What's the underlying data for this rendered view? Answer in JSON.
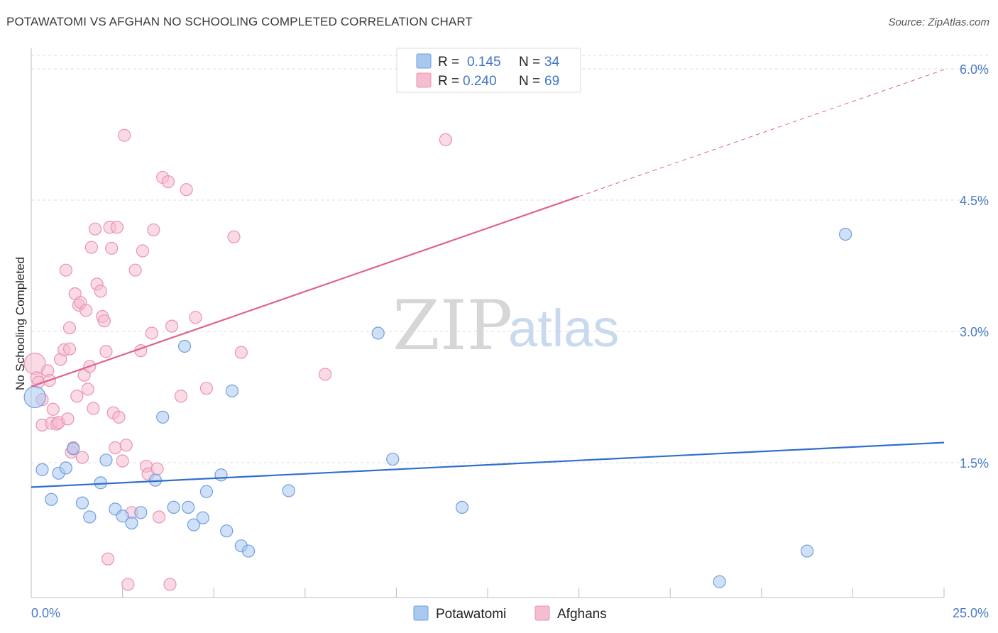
{
  "header": {
    "title": "POTAWATOMI VS AFGHAN NO SCHOOLING COMPLETED CORRELATION CHART",
    "source": "Source: ZipAtlas.com"
  },
  "watermark": {
    "zip": "ZIP",
    "atlas": "atlas"
  },
  "colors": {
    "potawatomi_fill": "#a9c8f0",
    "potawatomi_stroke": "#6f9fe0",
    "potawatomi_line": "#2f6fce",
    "afghan_fill": "#f6bcd0",
    "afghan_stroke": "#ea93b3",
    "afghan_line": "#e0628f",
    "tick_label": "#4a7bc6",
    "grid": "#dddddd"
  },
  "legend": {
    "rows": [
      {
        "r_label": "R =",
        "r_value": "0.145",
        "n_label": "N =",
        "n_value": "34"
      },
      {
        "r_label": "R =",
        "r_value": "0.240",
        "n_label": "N =",
        "n_value": "69"
      }
    ]
  },
  "chart_data": {
    "type": "scatter",
    "title": "POTAWATOMI VS AFGHAN NO SCHOOLING COMPLETED CORRELATION CHART",
    "xlabel": "",
    "ylabel": "No Schooling Completed",
    "xlim": [
      0,
      25
    ],
    "ylim": [
      0,
      6.2
    ],
    "x_tick_labels": [
      "0.0%",
      "25.0%"
    ],
    "y_ticks": [
      1.5,
      3.0,
      4.5,
      6.0
    ],
    "y_tick_labels": [
      "1.5%",
      "3.0%",
      "4.5%",
      "6.0%"
    ],
    "grid": true,
    "legend_position": "top-center",
    "series": [
      {
        "name": "Potawatomi",
        "r": 0.145,
        "n": 34,
        "trend": {
          "x0": 0,
          "y0": 1.22,
          "x1": 25,
          "y1": 1.73,
          "dashed_from_x": null
        },
        "points": [
          [
            0.1,
            2.25
          ],
          [
            0.3,
            1.42
          ],
          [
            0.55,
            1.08
          ],
          [
            0.75,
            1.38
          ],
          [
            0.95,
            1.44
          ],
          [
            1.15,
            1.66
          ],
          [
            1.4,
            1.04
          ],
          [
            1.6,
            0.88
          ],
          [
            1.9,
            1.27
          ],
          [
            2.05,
            1.53
          ],
          [
            2.3,
            0.97
          ],
          [
            2.5,
            0.89
          ],
          [
            2.75,
            0.81
          ],
          [
            3.0,
            0.93
          ],
          [
            3.4,
            1.3
          ],
          [
            3.6,
            2.02
          ],
          [
            3.9,
            0.99
          ],
          [
            4.2,
            2.83
          ],
          [
            4.3,
            0.99
          ],
          [
            4.45,
            0.79
          ],
          [
            4.7,
            0.87
          ],
          [
            4.8,
            1.17
          ],
          [
            5.2,
            1.36
          ],
          [
            5.35,
            0.72
          ],
          [
            5.5,
            2.32
          ],
          [
            5.75,
            0.55
          ],
          [
            5.95,
            0.49
          ],
          [
            7.05,
            1.18
          ],
          [
            9.5,
            2.98
          ],
          [
            9.9,
            1.54
          ],
          [
            11.8,
            0.99
          ],
          [
            18.85,
            0.14
          ],
          [
            21.25,
            0.49
          ],
          [
            22.3,
            4.11
          ]
        ]
      },
      {
        "name": "Afghans",
        "r": 0.24,
        "n": 69,
        "trend": {
          "x0": 0,
          "y0": 2.37,
          "x1": 25,
          "y1": 5.99,
          "dashed_from_x": 15.0
        },
        "points": [
          [
            0.1,
            2.63
          ],
          [
            0.15,
            2.47
          ],
          [
            0.2,
            2.42
          ],
          [
            0.3,
            2.22
          ],
          [
            0.3,
            1.93
          ],
          [
            0.45,
            2.55
          ],
          [
            0.5,
            2.44
          ],
          [
            0.55,
            1.95
          ],
          [
            0.6,
            2.11
          ],
          [
            0.7,
            1.94
          ],
          [
            0.75,
            1.96
          ],
          [
            0.8,
            2.68
          ],
          [
            0.9,
            2.79
          ],
          [
            0.95,
            3.7
          ],
          [
            1.05,
            2.8
          ],
          [
            1.05,
            3.04
          ],
          [
            1.1,
            1.62
          ],
          [
            1.15,
            1.67
          ],
          [
            1.2,
            3.43
          ],
          [
            1.25,
            2.26
          ],
          [
            1.3,
            3.3
          ],
          [
            1.35,
            3.33
          ],
          [
            1.4,
            1.56
          ],
          [
            1.45,
            2.5
          ],
          [
            1.5,
            3.24
          ],
          [
            1.55,
            2.34
          ],
          [
            1.6,
            2.6
          ],
          [
            1.65,
            3.96
          ],
          [
            1.7,
            2.12
          ],
          [
            1.75,
            4.17
          ],
          [
            1.8,
            3.54
          ],
          [
            1.9,
            3.46
          ],
          [
            1.95,
            3.17
          ],
          [
            2.0,
            3.12
          ],
          [
            2.05,
            2.77
          ],
          [
            2.1,
            0.4
          ],
          [
            2.15,
            4.19
          ],
          [
            2.2,
            3.95
          ],
          [
            2.25,
            2.07
          ],
          [
            2.3,
            1.67
          ],
          [
            2.35,
            4.19
          ],
          [
            2.4,
            2.02
          ],
          [
            2.5,
            1.52
          ],
          [
            2.55,
            5.24
          ],
          [
            2.6,
            1.7
          ],
          [
            2.65,
            0.11
          ],
          [
            2.75,
            0.93
          ],
          [
            2.85,
            3.7
          ],
          [
            3.0,
            2.78
          ],
          [
            3.05,
            3.92
          ],
          [
            3.15,
            1.46
          ],
          [
            3.2,
            1.37
          ],
          [
            3.3,
            2.98
          ],
          [
            3.35,
            4.16
          ],
          [
            3.45,
            1.43
          ],
          [
            3.5,
            0.88
          ],
          [
            3.6,
            4.76
          ],
          [
            3.75,
            4.71
          ],
          [
            3.8,
            0.11
          ],
          [
            3.85,
            3.06
          ],
          [
            4.1,
            2.26
          ],
          [
            4.25,
            4.62
          ],
          [
            4.5,
            3.16
          ],
          [
            4.8,
            2.35
          ],
          [
            5.55,
            4.08
          ],
          [
            5.75,
            2.76
          ],
          [
            8.05,
            2.51
          ],
          [
            11.35,
            5.19
          ],
          [
            1.0,
            2.0
          ]
        ]
      }
    ],
    "bottom_legend": [
      "Potawatomi",
      "Afghans"
    ]
  }
}
